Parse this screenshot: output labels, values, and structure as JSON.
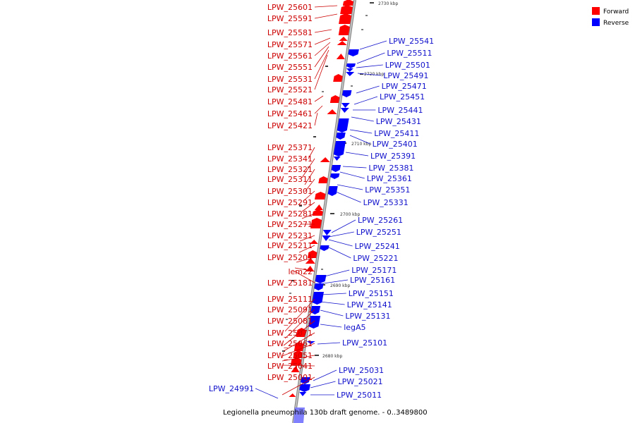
{
  "legend": [
    {
      "label": "Forward",
      "color": "#ff0000"
    },
    {
      "label": "Reverse",
      "color": "#0000ff"
    }
  ],
  "caption": "Legionella pneumophila 130b draft genome. - 0..3489800",
  "ticks": [
    "2730 kbp",
    "2720 kbp",
    "2710 kbp",
    "2700 kbp",
    "2690 kbp",
    "2680 kbp"
  ],
  "forward_genes": [
    "LPW_25601",
    "LPW_25591",
    "LPW_25581",
    "LPW_25571",
    "LPW_25561",
    "LPW_25551",
    "LPW_25531",
    "LPW_25521",
    "LPW_25481",
    "LPW_25461",
    "LPW_25421",
    "LPW_25371",
    "LPW_25341",
    "LPW_25321",
    "LPW_25311",
    "LPW_25301",
    "LPW_25291",
    "LPW_25281",
    "LPW_25271",
    "LPW_25231",
    "LPW_25211",
    "LPW_25201",
    "lem22",
    "LPW_25181",
    "LPW_25111",
    "LPW_25091",
    "LPW_25081",
    "LPW_25071",
    "LPW_25061",
    "LPW_25051",
    "LPW_25041",
    "LPW_25001"
  ],
  "reverse_genes": [
    "LPW_25541",
    "LPW_25511",
    "LPW_25501",
    "LPW_25491",
    "LPW_25471",
    "LPW_25451",
    "LPW_25441",
    "LPW_25431",
    "LPW_25411",
    "LPW_25401",
    "LPW_25391",
    "LPW_25381",
    "LPW_25361",
    "LPW_25351",
    "LPW_25331",
    "LPW_25261",
    "LPW_25251",
    "LPW_25241",
    "LPW_25221",
    "LPW_25171",
    "LPW_25161",
    "LPW_25151",
    "LPW_25141",
    "LPW_25131",
    "legA5",
    "LPW_25101",
    "LPW_25031",
    "LPW_25021",
    "LPW_25011",
    "LPW_24991"
  ]
}
